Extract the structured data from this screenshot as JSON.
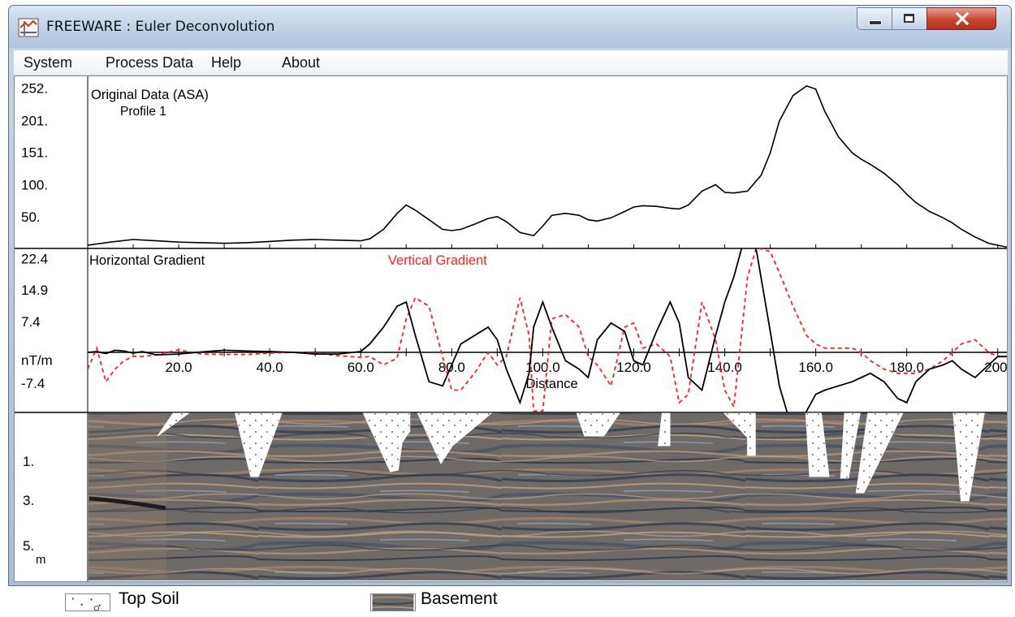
{
  "window": {
    "title": "FREEWARE : Euler Deconvolution"
  },
  "menu": {
    "items": [
      "System",
      "Process Data",
      "Help",
      "About"
    ]
  },
  "top_panel": {
    "label": "Original Data  (ASA)",
    "sublabel": "Profile 1",
    "y_ticks": [
      "252.",
      "201.",
      "151.",
      "100.",
      "50."
    ]
  },
  "gradient_panel": {
    "label_horizontal": "Horizontal Gradient",
    "label_vertical": "Vertical Gradient",
    "y_ticks": [
      "22.4",
      "14.9",
      "7.4",
      "nT/m",
      "-7.4"
    ],
    "x_ticks": [
      "20.0",
      "40.0",
      "60.0",
      "80.0",
      "100.0",
      "120.0",
      "140.0",
      "160.0",
      "180.0",
      "200."
    ],
    "x_label": "Distance",
    "horizontal_color": "#000000",
    "vertical_color": "#ff2020"
  },
  "section_panel": {
    "depth_ticks": [
      "1.",
      "3.",
      "5."
    ],
    "depth_unit": "m"
  },
  "legend": {
    "top_soil": "Top Soil",
    "basement": "Basement"
  },
  "chart_data": [
    {
      "type": "line",
      "title": "Original Data  (ASA)",
      "subtitle": "Profile 1",
      "x": [
        0,
        5,
        10,
        15,
        20,
        25,
        30,
        35,
        40,
        45,
        50,
        55,
        60,
        62,
        65,
        68,
        70,
        72,
        75,
        78,
        80,
        82,
        85,
        88,
        90,
        92,
        95,
        98,
        100,
        102,
        105,
        108,
        110,
        112,
        115,
        118,
        120,
        122,
        125,
        128,
        130,
        132,
        135,
        138,
        140,
        142,
        145,
        148,
        150,
        152,
        155,
        158,
        160,
        162,
        165,
        168,
        170,
        172,
        175,
        178,
        180,
        182,
        185,
        188,
        190,
        192,
        195,
        198,
        200,
        202
      ],
      "series": [
        {
          "values": [
            5,
            10,
            14,
            12,
            10,
            9,
            8,
            9,
            11,
            13,
            14,
            13,
            12,
            15,
            30,
            55,
            68,
            60,
            45,
            30,
            28,
            30,
            38,
            47,
            50,
            42,
            25,
            20,
            35,
            52,
            55,
            52,
            45,
            43,
            48,
            58,
            65,
            67,
            66,
            63,
            62,
            68,
            90,
            100,
            88,
            87,
            90,
            115,
            150,
            200,
            240,
            255,
            250,
            215,
            175,
            150,
            140,
            132,
            118,
            100,
            85,
            72,
            58,
            48,
            40,
            30,
            18,
            8,
            5,
            2
          ]
        }
      ],
      "ylim": [
        0,
        260
      ],
      "xlim": [
        0,
        202
      ]
    },
    {
      "type": "line",
      "xlabel": "Distance",
      "ylabel": "nT/m",
      "x": [
        0,
        2,
        4,
        6,
        8,
        10,
        12,
        15,
        20,
        25,
        30,
        35,
        40,
        45,
        50,
        55,
        60,
        62,
        65,
        68,
        70,
        72,
        75,
        78,
        80,
        82,
        85,
        88,
        90,
        92,
        95,
        97,
        98,
        100,
        102,
        105,
        108,
        110,
        112,
        115,
        118,
        120,
        122,
        125,
        128,
        130,
        132,
        135,
        138,
        140,
        142,
        145,
        147,
        150,
        152,
        155,
        158,
        160,
        162,
        165,
        168,
        170,
        172,
        175,
        178,
        180,
        182,
        185,
        188,
        190,
        192,
        195,
        198,
        200,
        202
      ],
      "series": [
        {
          "name": "Horizontal Gradient",
          "values": [
            0,
            0.2,
            -0.3,
            0.5,
            0.3,
            -0.2,
            0.2,
            -0.6,
            -0.4,
            0.1,
            0.5,
            0.3,
            0.2,
            0,
            -0.4,
            -0.4,
            0.2,
            2,
            6,
            11,
            12,
            4,
            -7,
            -8,
            -3,
            2,
            4,
            6,
            3,
            -4,
            -12,
            -5,
            6,
            12,
            6,
            -2,
            -4,
            -6,
            3,
            7,
            5,
            -2,
            -3,
            5,
            12,
            7,
            -6,
            -9,
            4,
            12,
            18,
            30,
            24,
            5,
            -8,
            -19,
            -14,
            -10,
            -9,
            -8,
            -7,
            -6,
            -5,
            -7,
            -11,
            -12,
            -7,
            -4,
            -3,
            -2,
            -4,
            -6,
            -3,
            -1,
            -1
          ]
        },
        {
          "name": "Vertical Gradient",
          "values": [
            -4,
            1,
            -7,
            -4,
            -2,
            -1,
            -1,
            -0.6,
            0.6,
            -0.4,
            -0.5,
            -0.5,
            -0.2,
            0,
            -0.2,
            -0.8,
            -1.2,
            -1,
            -3,
            -1.4,
            8,
            13,
            11,
            -1,
            -9,
            -9,
            -5,
            0,
            -3,
            -1,
            13,
            4,
            -14,
            -14,
            8,
            9,
            6,
            -1,
            -3,
            -8,
            6,
            7,
            1,
            2,
            -1,
            -12,
            -10,
            12,
            3,
            -9,
            -13,
            18,
            25,
            24,
            19,
            11,
            4,
            2,
            1,
            1,
            1,
            0,
            -2,
            -4,
            -5,
            -5,
            -5,
            -4,
            -2,
            0,
            2,
            3,
            0,
            -1,
            -1
          ]
        }
      ],
      "ylim": [
        -11,
        24
      ],
      "xlim": [
        0,
        202
      ]
    }
  ]
}
